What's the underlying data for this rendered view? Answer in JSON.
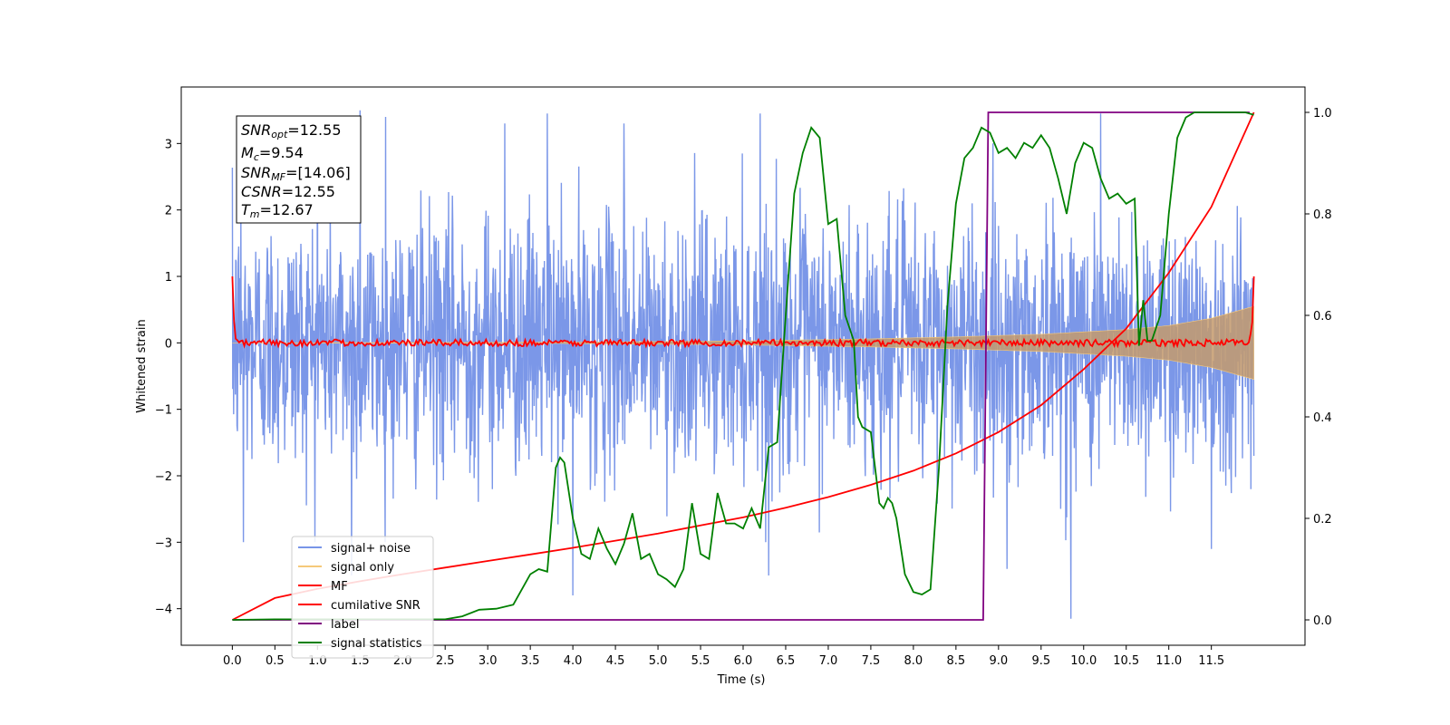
{
  "chart_data": {
    "type": "line",
    "xlabel": "Time (s)",
    "ylabel": "Whitened strain",
    "xlim": [
      -0.6,
      12.6
    ],
    "ylim": [
      -4.55,
      3.85
    ],
    "ylim_right": [
      -0.05,
      1.05
    ],
    "x_ticks": [
      0.0,
      0.5,
      1.0,
      1.5,
      2.0,
      2.5,
      3.0,
      3.5,
      4.0,
      4.5,
      5.0,
      5.5,
      6.0,
      6.5,
      7.0,
      7.5,
      8.0,
      8.5,
      9.0,
      9.5,
      10.0,
      10.5,
      11.0,
      11.5
    ],
    "x_tick_labels": [
      "0.0",
      "0.5",
      "1.0",
      "1.5",
      "2.0",
      "2.5",
      "3.0",
      "3.5",
      "4.0",
      "4.5",
      "5.0",
      "5.5",
      "6.0",
      "6.5",
      "7.0",
      "7.5",
      "8.0",
      "8.5",
      "9.0",
      "9.5",
      "10.0",
      "10.5",
      "11.0",
      "11.5"
    ],
    "y_ticks": [
      -4,
      -3,
      -2,
      -1,
      0,
      1,
      2,
      3
    ],
    "y_tick_labels": [
      "−4",
      "−3",
      "−2",
      "−1",
      "0",
      "1",
      "2",
      "3"
    ],
    "y_right_ticks": [
      0.0,
      0.2,
      0.4,
      0.6,
      0.8,
      1.0
    ],
    "y_right_tick_labels": [
      "0.0",
      "0.2",
      "0.4",
      "0.6",
      "0.8",
      "1.0"
    ],
    "grid": false,
    "legend_placement": "lower-left",
    "legend": [
      {
        "label": "signal+ noise",
        "color": "#7895e8"
      },
      {
        "label": "signal only",
        "color": "#f5c97a"
      },
      {
        "label": "MF",
        "color": "#ff0000"
      },
      {
        "label": "cumilative SNR",
        "color": "#ff0000"
      },
      {
        "label": "label",
        "color": "#800080"
      },
      {
        "label": "signal statistics",
        "color": "#008000"
      }
    ],
    "stats_box": {
      "snr_opt_sym": "SNR",
      "snr_opt_sub": "opt",
      "snr_opt_val": "=12.55",
      "mc_sym": "M",
      "mc_sub": "c",
      "mc_val": "=9.54",
      "snr_mf_sym": "SNR",
      "snr_mf_sub": "MF",
      "snr_mf_val": "=[14.06]",
      "csnr_sym": "CSNR",
      "csnr_val": "=12.55",
      "tm_sym": "T",
      "tm_sub": "m",
      "tm_val": "=12.67"
    },
    "series": [
      {
        "name": "signal+ noise",
        "axis": "left",
        "color": "#7895e8",
        "x_range": [
          0.0,
          12.0
        ],
        "envelope_typical": [
          -2.0,
          2.0
        ],
        "extreme_peaks": [
          {
            "x": 0.1,
            "y": 2.0
          },
          {
            "x": 0.13,
            "y": -3.0
          },
          {
            "x": 1.0,
            "y": 3.2
          },
          {
            "x": 1.5,
            "y": 3.5
          },
          {
            "x": 1.8,
            "y": 3.4
          },
          {
            "x": 1.4,
            "y": -3.5
          },
          {
            "x": 3.2,
            "y": 3.3
          },
          {
            "x": 3.7,
            "y": 3.45
          },
          {
            "x": 4.0,
            "y": -3.8
          },
          {
            "x": 4.6,
            "y": 3.3
          },
          {
            "x": 6.2,
            "y": 3.45
          },
          {
            "x": 6.3,
            "y": -3.5
          },
          {
            "x": 9.1,
            "y": -3.4
          },
          {
            "x": 9.85,
            "y": -4.15
          },
          {
            "x": 10.2,
            "y": 3.45
          },
          {
            "x": 11.5,
            "y": -3.1
          }
        ]
      },
      {
        "name": "signal only",
        "axis": "left",
        "color": "#f5c97a",
        "x_range": [
          0.0,
          12.0
        ],
        "envelope": {
          "x": [
            0.0,
            4.0,
            6.0,
            7.5,
            8.5,
            9.5,
            10.5,
            11.0,
            11.5,
            12.0
          ],
          "y": [
            0.0,
            0.01,
            0.03,
            0.06,
            0.09,
            0.13,
            0.2,
            0.26,
            0.37,
            0.55
          ]
        }
      },
      {
        "name": "MF",
        "axis": "left",
        "color": "#ff0000",
        "x_range": [
          0.0,
          12.0
        ],
        "start_value": 1.0,
        "end_value": 1.0,
        "noise_amplitude": 0.05
      },
      {
        "name": "cumilative SNR",
        "axis": "right",
        "color": "#ff0000",
        "x": [
          0.0,
          0.5,
          1.0,
          1.5,
          2.0,
          2.5,
          3.0,
          3.5,
          4.0,
          4.5,
          5.0,
          5.5,
          6.0,
          6.5,
          7.0,
          7.5,
          8.0,
          8.5,
          9.0,
          9.5,
          10.0,
          10.5,
          11.0,
          11.5,
          12.0
        ],
        "y": [
          0.0,
          0.043,
          0.061,
          0.076,
          0.09,
          0.103,
          0.116,
          0.129,
          0.142,
          0.156,
          0.17,
          0.186,
          0.202,
          0.221,
          0.242,
          0.266,
          0.294,
          0.328,
          0.37,
          0.423,
          0.494,
          0.574,
          0.684,
          0.814,
          1.0
        ]
      },
      {
        "name": "label",
        "axis": "right",
        "color": "#800080",
        "x": [
          0.0,
          8.82,
          8.88,
          11.95
        ],
        "y": [
          0.0,
          0.0,
          1.0,
          1.0
        ]
      },
      {
        "name": "signal statistics",
        "axis": "right",
        "color": "#008000",
        "x": [
          0.0,
          0.5,
          1.0,
          1.5,
          2.0,
          2.5,
          2.7,
          2.9,
          3.1,
          3.3,
          3.5,
          3.6,
          3.7,
          3.8,
          3.85,
          3.9,
          4.0,
          4.1,
          4.2,
          4.3,
          4.4,
          4.5,
          4.6,
          4.7,
          4.8,
          4.9,
          5.0,
          5.1,
          5.2,
          5.3,
          5.4,
          5.5,
          5.6,
          5.7,
          5.8,
          5.9,
          6.0,
          6.1,
          6.2,
          6.3,
          6.4,
          6.5,
          6.6,
          6.7,
          6.8,
          6.9,
          7.0,
          7.1,
          7.2,
          7.3,
          7.35,
          7.4,
          7.5,
          7.6,
          7.65,
          7.7,
          7.75,
          7.8,
          7.9,
          8.0,
          8.1,
          8.2,
          8.3,
          8.4,
          8.5,
          8.6,
          8.7,
          8.8,
          8.9,
          9.0,
          9.1,
          9.2,
          9.3,
          9.4,
          9.5,
          9.6,
          9.7,
          9.8,
          9.9,
          10.0,
          10.1,
          10.2,
          10.3,
          10.4,
          10.5,
          10.6,
          10.65,
          10.7,
          10.75,
          10.8,
          10.9,
          11.0,
          11.1,
          11.2,
          11.3,
          11.4,
          11.5,
          11.6,
          11.7,
          11.8,
          11.9,
          12.0
        ],
        "y": [
          0.0,
          0.001,
          0.001,
          0.001,
          0.001,
          0.001,
          0.007,
          0.02,
          0.022,
          0.03,
          0.09,
          0.1,
          0.095,
          0.3,
          0.32,
          0.31,
          0.2,
          0.13,
          0.12,
          0.18,
          0.14,
          0.11,
          0.15,
          0.21,
          0.12,
          0.13,
          0.09,
          0.08,
          0.065,
          0.1,
          0.23,
          0.13,
          0.12,
          0.25,
          0.19,
          0.19,
          0.18,
          0.22,
          0.18,
          0.34,
          0.35,
          0.6,
          0.84,
          0.92,
          0.97,
          0.95,
          0.78,
          0.79,
          0.6,
          0.55,
          0.4,
          0.38,
          0.37,
          0.23,
          0.22,
          0.24,
          0.23,
          0.2,
          0.09,
          0.055,
          0.05,
          0.06,
          0.3,
          0.62,
          0.82,
          0.91,
          0.93,
          0.97,
          0.96,
          0.92,
          0.93,
          0.91,
          0.94,
          0.93,
          0.955,
          0.93,
          0.87,
          0.8,
          0.9,
          0.94,
          0.93,
          0.87,
          0.83,
          0.84,
          0.82,
          0.83,
          0.54,
          0.63,
          0.55,
          0.55,
          0.6,
          0.8,
          0.95,
          0.99,
          1.0,
          1.0,
          1.0,
          1.0,
          1.0,
          1.0,
          1.0,
          0.995
        ]
      }
    ]
  }
}
